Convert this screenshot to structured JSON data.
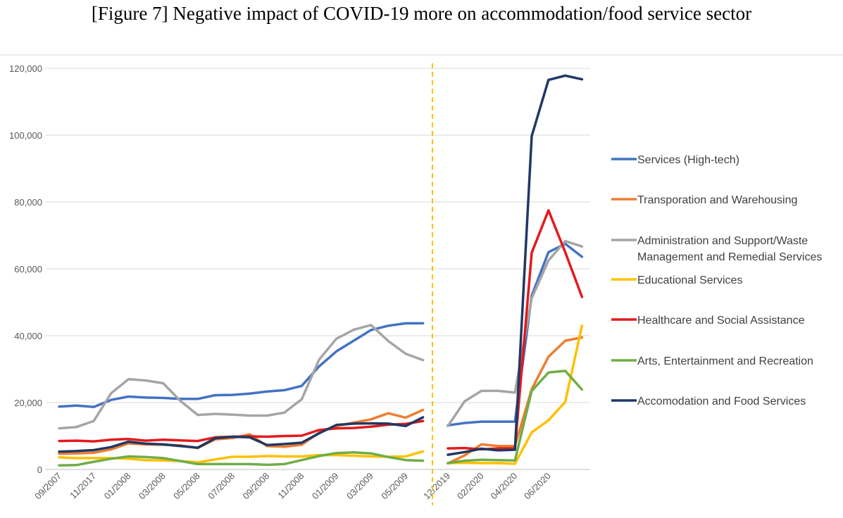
{
  "title": "[Figure 7] Negative impact of COVID-19 more on accommodation/food service sector",
  "chart_data": {
    "type": "line",
    "title": "[Figure 7] Negative impact of COVID-19 more on accommodation/food service sector",
    "xlabel": "",
    "ylabel": "",
    "ylim": [
      0,
      120000
    ],
    "yticks": [
      0,
      20000,
      40000,
      60000,
      80000,
      100000,
      120000
    ],
    "ytick_labels": [
      "0",
      "20,000",
      "40,000",
      "60,000",
      "80,000",
      "100,000",
      "120,000"
    ],
    "grid": "horizontal",
    "legend_position": "right",
    "separator": "dashed vertical line between the two periods",
    "segments": [
      {
        "tick_labels": [
          "09/2007",
          "11/2017",
          "01/2008",
          "03/2008",
          "05/2008",
          "07/2008",
          "09/2008",
          "11/2008",
          "01/2009",
          "03/2009",
          "05/2009"
        ],
        "point_count": 22
      },
      {
        "tick_labels": [
          "12/2019",
          "02/2020",
          "04/2020",
          "06/2020"
        ],
        "point_count": 9
      }
    ],
    "series": [
      {
        "name": "Services (High-tech)",
        "color": "#4472C4",
        "values": [
          18800,
          19100,
          18700,
          20800,
          21800,
          21500,
          21400,
          21100,
          21100,
          22200,
          22300,
          22700,
          23300,
          23700,
          25000,
          30800,
          35300,
          38500,
          41700,
          43000,
          43700,
          43700
        ],
        "values2": [
          13200,
          13900,
          14300,
          14300,
          14300,
          52000,
          65000,
          67500,
          63600
        ]
      },
      {
        "name": "Transporation and Warehousing",
        "color": "#ED7D31",
        "values": [
          4700,
          4800,
          5000,
          6000,
          7800,
          7500,
          7400,
          7200,
          6400,
          9000,
          9400,
          10500,
          7000,
          6800,
          7400,
          11000,
          13000,
          14000,
          15000,
          16800,
          15500,
          17800
        ],
        "values2": [
          1800,
          4200,
          7500,
          7000,
          7000,
          24000,
          33700,
          38500,
          39500
        ]
      },
      {
        "name": "Administration and Support/Waste Management and Remedial Services",
        "color": "#A5A5A5",
        "values": [
          12300,
          12700,
          14500,
          22800,
          27000,
          26600,
          25800,
          20500,
          16300,
          16600,
          16400,
          16100,
          16100,
          17000,
          21000,
          32800,
          39100,
          41800,
          43200,
          38400,
          34600,
          32700
        ],
        "values2": [
          13000,
          20400,
          23500,
          23500,
          23000,
          51200,
          62500,
          68300,
          66700
        ]
      },
      {
        "name": "Educational Services",
        "color": "#FFC000",
        "values": [
          3600,
          3400,
          3400,
          3400,
          3200,
          2800,
          2700,
          2500,
          2100,
          3000,
          3800,
          3800,
          4000,
          3900,
          3900,
          4300,
          4300,
          4100,
          3900,
          3800,
          3900,
          5400
        ],
        "values2": [
          1900,
          2000,
          1900,
          1900,
          1700,
          11100,
          14700,
          20200,
          43000
        ]
      },
      {
        "name": "Healthcare and Social Assistance",
        "color": "#E31A1C",
        "values": [
          8500,
          8600,
          8400,
          8900,
          9100,
          8600,
          8900,
          8700,
          8500,
          9600,
          9800,
          9900,
          9800,
          10000,
          10100,
          11800,
          12300,
          12400,
          12800,
          13400,
          13600,
          14500
        ],
        "values2": [
          6300,
          6400,
          6000,
          6300,
          6300,
          64800,
          77500,
          65000,
          51600
        ]
      },
      {
        "name": "Arts, Entertainment and Recreation",
        "color": "#70AD47",
        "values": [
          1200,
          1300,
          2300,
          3200,
          3900,
          3700,
          3400,
          2500,
          1600,
          1600,
          1600,
          1600,
          1400,
          1600,
          2800,
          4000,
          4900,
          5100,
          4800,
          3700,
          2800,
          2600
        ],
        "values2": [
          1900,
          2600,
          2900,
          2800,
          2700,
          23500,
          29000,
          29500,
          23900
        ]
      },
      {
        "name": "Accomodation and Food Services",
        "color": "#203864",
        "values": [
          5300,
          5500,
          5800,
          6700,
          8300,
          7700,
          7500,
          7000,
          6500,
          9300,
          9800,
          9600,
          7300,
          7600,
          8000,
          10800,
          13300,
          13700,
          13800,
          13700,
          13000,
          15600
        ],
        "values2": [
          4400,
          5200,
          6200,
          5700,
          5900,
          99700,
          116500,
          117800,
          116700
        ]
      }
    ]
  }
}
